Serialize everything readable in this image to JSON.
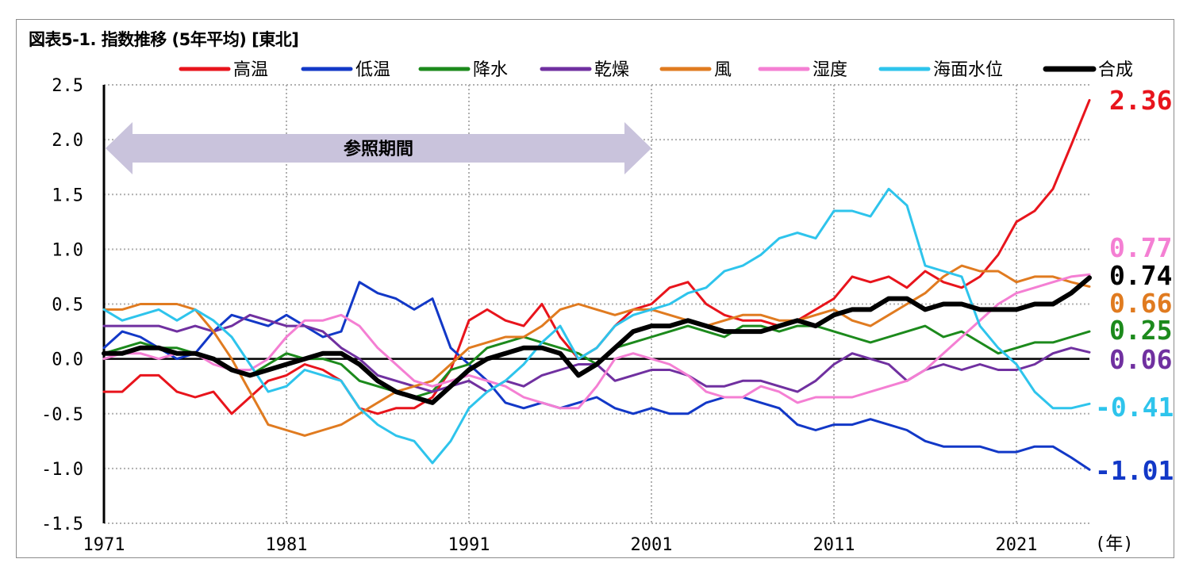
{
  "title": "図表5-1. 指数推移 (5年平均) [東北]",
  "reference_period_label": "参照期間",
  "x_unit_label": "(年)",
  "chart_data": {
    "type": "line",
    "title": "図表5-1. 指数推移 (5年平均) [東北]",
    "xlabel": "",
    "ylabel": "",
    "xlim": [
      1971,
      2025
    ],
    "ylim": [
      -1.5,
      2.5
    ],
    "x_ticks": [
      "1971",
      "1981",
      "1991",
      "2001",
      "2011",
      "2021"
    ],
    "y_ticks": [
      "2.5",
      "2.0",
      "1.5",
      "1.0",
      "0.5",
      "0.0",
      "-0.5",
      "-1.0",
      "-1.5"
    ],
    "grid": "vertical dotted",
    "legend_position": "top",
    "reference_period": [
      1971,
      2001
    ],
    "series": [
      {
        "name": "高温",
        "color": "#e8141c",
        "end_label": "2.36",
        "x": [
          1971,
          1972,
          1973,
          1974,
          1975,
          1976,
          1977,
          1978,
          1979,
          1980,
          1981,
          1982,
          1983,
          1984,
          1985,
          1986,
          1987,
          1988,
          1989,
          1990,
          1991,
          1992,
          1993,
          1994,
          1995,
          1996,
          1997,
          1998,
          1999,
          2000,
          2001,
          2002,
          2003,
          2004,
          2005,
          2006,
          2007,
          2008,
          2009,
          2010,
          2011,
          2012,
          2013,
          2014,
          2015,
          2016,
          2017,
          2018,
          2019,
          2020,
          2021,
          2022,
          2023,
          2024,
          2025
        ],
        "y": [
          -0.3,
          -0.3,
          -0.15,
          -0.15,
          -0.3,
          -0.35,
          -0.3,
          -0.5,
          -0.35,
          -0.2,
          -0.15,
          -0.05,
          -0.1,
          -0.2,
          -0.45,
          -0.5,
          -0.45,
          -0.45,
          -0.35,
          -0.1,
          0.35,
          0.45,
          0.35,
          0.3,
          0.5,
          0.2,
          0.0,
          0.1,
          0.3,
          0.45,
          0.5,
          0.65,
          0.7,
          0.5,
          0.4,
          0.35,
          0.35,
          0.3,
          0.35,
          0.45,
          0.55,
          0.75,
          0.7,
          0.75,
          0.65,
          0.8,
          0.7,
          0.65,
          0.75,
          0.95,
          1.25,
          1.35,
          1.55,
          1.95,
          2.36
        ]
      },
      {
        "name": "低温",
        "color": "#1238c7",
        "end_label": "-1.01",
        "x": [
          1971,
          1972,
          1973,
          1974,
          1975,
          1976,
          1977,
          1978,
          1979,
          1980,
          1981,
          1982,
          1983,
          1984,
          1985,
          1986,
          1987,
          1988,
          1989,
          1990,
          1991,
          1992,
          1993,
          1994,
          1995,
          1996,
          1997,
          1998,
          1999,
          2000,
          2001,
          2002,
          2003,
          2004,
          2005,
          2006,
          2007,
          2008,
          2009,
          2010,
          2011,
          2012,
          2013,
          2014,
          2015,
          2016,
          2017,
          2018,
          2019,
          2020,
          2021,
          2022,
          2023,
          2024,
          2025
        ],
        "y": [
          0.1,
          0.25,
          0.2,
          0.1,
          0.0,
          0.05,
          0.25,
          0.4,
          0.35,
          0.3,
          0.4,
          0.3,
          0.2,
          0.25,
          0.7,
          0.6,
          0.55,
          0.45,
          0.55,
          0.1,
          -0.05,
          -0.2,
          -0.4,
          -0.45,
          -0.4,
          -0.45,
          -0.4,
          -0.35,
          -0.45,
          -0.5,
          -0.45,
          -0.5,
          -0.5,
          -0.4,
          -0.35,
          -0.35,
          -0.4,
          -0.45,
          -0.6,
          -0.65,
          -0.6,
          -0.6,
          -0.55,
          -0.6,
          -0.65,
          -0.75,
          -0.8,
          -0.8,
          -0.8,
          -0.85,
          -0.85,
          -0.8,
          -0.8,
          -0.9,
          -1.01
        ]
      },
      {
        "name": "降水",
        "color": "#1c8a1c",
        "end_label": "0.25",
        "x": [
          1971,
          1972,
          1973,
          1974,
          1975,
          1976,
          1977,
          1978,
          1979,
          1980,
          1981,
          1982,
          1983,
          1984,
          1985,
          1986,
          1987,
          1988,
          1989,
          1990,
          1991,
          1992,
          1993,
          1994,
          1995,
          1996,
          1997,
          1998,
          1999,
          2000,
          2001,
          2002,
          2003,
          2004,
          2005,
          2006,
          2007,
          2008,
          2009,
          2010,
          2011,
          2012,
          2013,
          2014,
          2015,
          2016,
          2017,
          2018,
          2019,
          2020,
          2021,
          2022,
          2023,
          2024,
          2025
        ],
        "y": [
          0.05,
          0.1,
          0.15,
          0.1,
          0.1,
          0.05,
          0.0,
          -0.1,
          -0.15,
          -0.05,
          0.05,
          0.0,
          0.0,
          -0.05,
          -0.2,
          -0.25,
          -0.3,
          -0.35,
          -0.3,
          -0.1,
          -0.05,
          0.1,
          0.15,
          0.2,
          0.15,
          0.1,
          0.05,
          -0.05,
          0.1,
          0.15,
          0.2,
          0.25,
          0.3,
          0.25,
          0.2,
          0.3,
          0.3,
          0.25,
          0.3,
          0.3,
          0.25,
          0.2,
          0.15,
          0.2,
          0.25,
          0.3,
          0.2,
          0.25,
          0.15,
          0.05,
          0.1,
          0.15,
          0.15,
          0.2,
          0.25
        ]
      },
      {
        "name": "乾燥",
        "color": "#7030a0",
        "end_label": "0.06",
        "x": [
          1971,
          1972,
          1973,
          1974,
          1975,
          1976,
          1977,
          1978,
          1979,
          1980,
          1981,
          1982,
          1983,
          1984,
          1985,
          1986,
          1987,
          1988,
          1989,
          1990,
          1991,
          1992,
          1993,
          1994,
          1995,
          1996,
          1997,
          1998,
          1999,
          2000,
          2001,
          2002,
          2003,
          2004,
          2005,
          2006,
          2007,
          2008,
          2009,
          2010,
          2011,
          2012,
          2013,
          2014,
          2015,
          2016,
          2017,
          2018,
          2019,
          2020,
          2021,
          2022,
          2023,
          2024,
          2025
        ],
        "y": [
          0.3,
          0.3,
          0.3,
          0.3,
          0.25,
          0.3,
          0.25,
          0.3,
          0.4,
          0.35,
          0.3,
          0.3,
          0.25,
          0.1,
          0.0,
          -0.15,
          -0.2,
          -0.25,
          -0.3,
          -0.25,
          -0.2,
          -0.3,
          -0.2,
          -0.25,
          -0.15,
          -0.1,
          -0.05,
          -0.05,
          -0.2,
          -0.15,
          -0.1,
          -0.1,
          -0.15,
          -0.25,
          -0.25,
          -0.2,
          -0.2,
          -0.25,
          -0.3,
          -0.2,
          -0.05,
          0.05,
          0.0,
          -0.05,
          -0.2,
          -0.1,
          -0.05,
          -0.1,
          -0.05,
          -0.1,
          -0.1,
          -0.05,
          0.05,
          0.1,
          0.06
        ]
      },
      {
        "name": "風",
        "color": "#e07b20",
        "end_label": "0.66",
        "x": [
          1971,
          1972,
          1973,
          1974,
          1975,
          1976,
          1977,
          1978,
          1979,
          1980,
          1981,
          1982,
          1983,
          1984,
          1985,
          1986,
          1987,
          1988,
          1989,
          1990,
          1991,
          1992,
          1993,
          1994,
          1995,
          1996,
          1997,
          1998,
          1999,
          2000,
          2001,
          2002,
          2003,
          2004,
          2005,
          2006,
          2007,
          2008,
          2009,
          2010,
          2011,
          2012,
          2013,
          2014,
          2015,
          2016,
          2017,
          2018,
          2019,
          2020,
          2021,
          2022,
          2023,
          2024,
          2025
        ],
        "y": [
          0.45,
          0.45,
          0.5,
          0.5,
          0.5,
          0.45,
          0.25,
          0.0,
          -0.3,
          -0.6,
          -0.65,
          -0.7,
          -0.65,
          -0.6,
          -0.5,
          -0.4,
          -0.3,
          -0.25,
          -0.2,
          -0.05,
          0.1,
          0.15,
          0.2,
          0.2,
          0.3,
          0.45,
          0.5,
          0.45,
          0.4,
          0.45,
          0.45,
          0.4,
          0.35,
          0.3,
          0.35,
          0.4,
          0.4,
          0.35,
          0.35,
          0.4,
          0.45,
          0.35,
          0.3,
          0.4,
          0.5,
          0.6,
          0.75,
          0.85,
          0.8,
          0.8,
          0.7,
          0.75,
          0.75,
          0.7,
          0.66
        ]
      },
      {
        "name": "湿度",
        "color": "#f47fd3",
        "end_label": "0.77",
        "x": [
          1971,
          1972,
          1973,
          1974,
          1975,
          1976,
          1977,
          1978,
          1979,
          1980,
          1981,
          1982,
          1983,
          1984,
          1985,
          1986,
          1987,
          1988,
          1989,
          1990,
          1991,
          1992,
          1993,
          1994,
          1995,
          1996,
          1997,
          1998,
          1999,
          2000,
          2001,
          2002,
          2003,
          2004,
          2005,
          2006,
          2007,
          2008,
          2009,
          2010,
          2011,
          2012,
          2013,
          2014,
          2015,
          2016,
          2017,
          2018,
          2019,
          2020,
          2021,
          2022,
          2023,
          2024,
          2025
        ],
        "y": [
          0.0,
          0.05,
          0.05,
          0.0,
          0.05,
          0.05,
          -0.05,
          -0.1,
          -0.1,
          0.0,
          0.2,
          0.35,
          0.35,
          0.4,
          0.3,
          0.1,
          -0.05,
          -0.2,
          -0.25,
          -0.2,
          -0.15,
          -0.2,
          -0.25,
          -0.35,
          -0.4,
          -0.45,
          -0.45,
          -0.25,
          0.0,
          0.05,
          0.0,
          -0.05,
          -0.15,
          -0.3,
          -0.35,
          -0.35,
          -0.25,
          -0.3,
          -0.4,
          -0.35,
          -0.35,
          -0.35,
          -0.3,
          -0.25,
          -0.2,
          -0.1,
          0.05,
          0.2,
          0.35,
          0.5,
          0.6,
          0.65,
          0.7,
          0.75,
          0.77
        ]
      },
      {
        "name": "海面水位",
        "color": "#2ec4ec",
        "end_label": "-0.41",
        "x": [
          1971,
          1972,
          1973,
          1974,
          1975,
          1976,
          1977,
          1978,
          1979,
          1980,
          1981,
          1982,
          1983,
          1984,
          1985,
          1986,
          1987,
          1988,
          1989,
          1990,
          1991,
          1992,
          1993,
          1994,
          1995,
          1996,
          1997,
          1998,
          1999,
          2000,
          2001,
          2002,
          2003,
          2004,
          2005,
          2006,
          2007,
          2008,
          2009,
          2010,
          2011,
          2012,
          2013,
          2014,
          2015,
          2016,
          2017,
          2018,
          2019,
          2020,
          2021,
          2022,
          2023,
          2024,
          2025
        ],
        "y": [
          0.45,
          0.35,
          0.4,
          0.45,
          0.35,
          0.45,
          0.35,
          0.2,
          -0.05,
          -0.3,
          -0.25,
          -0.1,
          -0.15,
          -0.2,
          -0.45,
          -0.6,
          -0.7,
          -0.75,
          -0.95,
          -0.75,
          -0.45,
          -0.3,
          -0.2,
          -0.05,
          0.15,
          0.3,
          0.0,
          0.1,
          0.3,
          0.4,
          0.45,
          0.5,
          0.6,
          0.65,
          0.8,
          0.85,
          0.95,
          1.1,
          1.15,
          1.1,
          1.35,
          1.35,
          1.3,
          1.55,
          1.4,
          0.85,
          0.8,
          0.75,
          0.3,
          0.1,
          -0.05,
          -0.3,
          -0.45,
          -0.45,
          -0.41
        ]
      },
      {
        "name": "合成",
        "color": "#000000",
        "end_label": "0.74",
        "x": [
          1971,
          1972,
          1973,
          1974,
          1975,
          1976,
          1977,
          1978,
          1979,
          1980,
          1981,
          1982,
          1983,
          1984,
          1985,
          1986,
          1987,
          1988,
          1989,
          1990,
          1991,
          1992,
          1993,
          1994,
          1995,
          1996,
          1997,
          1998,
          1999,
          2000,
          2001,
          2002,
          2003,
          2004,
          2005,
          2006,
          2007,
          2008,
          2009,
          2010,
          2011,
          2012,
          2013,
          2014,
          2015,
          2016,
          2017,
          2018,
          2019,
          2020,
          2021,
          2022,
          2023,
          2024,
          2025
        ],
        "y": [
          0.05,
          0.05,
          0.1,
          0.1,
          0.05,
          0.05,
          0.0,
          -0.1,
          -0.15,
          -0.1,
          -0.05,
          0.0,
          0.05,
          0.05,
          -0.05,
          -0.2,
          -0.3,
          -0.35,
          -0.4,
          -0.25,
          -0.1,
          0.0,
          0.05,
          0.1,
          0.1,
          0.05,
          -0.15,
          -0.05,
          0.1,
          0.25,
          0.3,
          0.3,
          0.35,
          0.3,
          0.25,
          0.25,
          0.25,
          0.3,
          0.35,
          0.3,
          0.4,
          0.45,
          0.45,
          0.55,
          0.55,
          0.45,
          0.5,
          0.5,
          0.45,
          0.45,
          0.45,
          0.5,
          0.5,
          0.6,
          0.74
        ]
      }
    ]
  }
}
